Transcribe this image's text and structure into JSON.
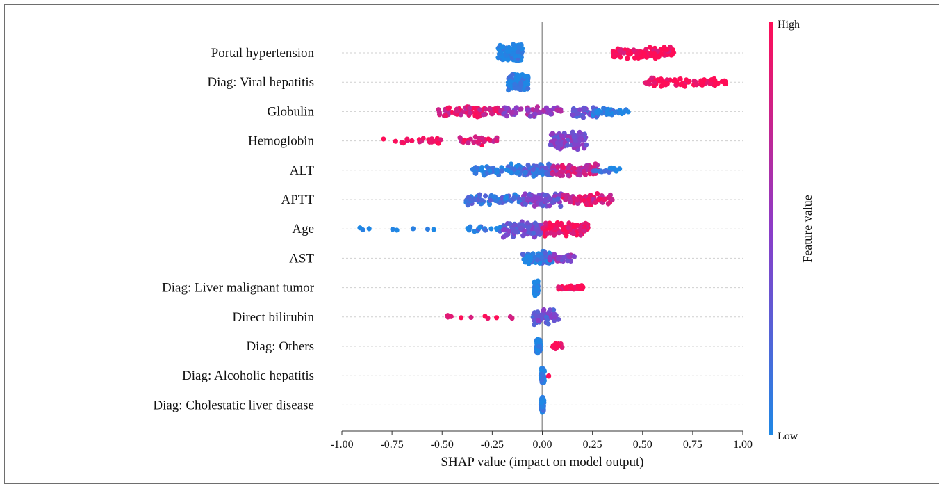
{
  "chart_data": {
    "type": "scatter",
    "subtype": "shap-beeswarm",
    "xlabel": "SHAP value (impact on model output)",
    "xlim": [
      -1.0,
      1.0
    ],
    "xticks": [
      "-1.00",
      "-0.75",
      "-0.50",
      "-0.25",
      "0.00",
      "0.25",
      "0.50",
      "0.75",
      "1.00"
    ],
    "xtick_values": [
      -1.0,
      -0.75,
      -0.5,
      -0.25,
      0.0,
      0.25,
      0.5,
      0.75,
      1.0
    ],
    "grid": "horizontal dashed per feature",
    "colorbar": {
      "title": "Feature value",
      "high_label": "High",
      "low_label": "Low",
      "low_color": "#1e88e5",
      "high_color": "#ff0d57"
    },
    "features": [
      {
        "name": "Portal hypertension",
        "clusters": [
          {
            "min": -0.22,
            "max": -0.1,
            "value": 0.0,
            "n": 130,
            "spread": 14
          },
          {
            "min": 0.35,
            "max": 0.66,
            "value": 1.0,
            "n": 110,
            "spread": 9
          }
        ]
      },
      {
        "name": "Diag: Viral hepatitis",
        "clusters": [
          {
            "min": -0.17,
            "max": -0.07,
            "value": 0.0,
            "n": 110,
            "spread": 14
          },
          {
            "min": 0.5,
            "max": 0.92,
            "value": 1.0,
            "n": 80,
            "spread": 7
          }
        ]
      },
      {
        "name": "Globulin",
        "clusters": [
          {
            "min": -0.52,
            "max": -0.2,
            "value": 0.85,
            "n": 75,
            "spread": 9
          },
          {
            "min": -0.2,
            "max": 0.1,
            "value": 0.55,
            "n": 55,
            "spread": 8
          },
          {
            "min": 0.15,
            "max": 0.28,
            "value": 0.3,
            "n": 45,
            "spread": 10
          },
          {
            "min": 0.25,
            "max": 0.43,
            "value": 0.05,
            "n": 40,
            "spread": 6
          }
        ]
      },
      {
        "name": "Hemoglobin",
        "clusters": [
          {
            "min": -0.8,
            "max": -0.5,
            "value": 0.95,
            "n": 22,
            "spread": 4
          },
          {
            "min": -0.43,
            "max": -0.22,
            "value": 0.85,
            "n": 28,
            "spread": 6
          },
          {
            "min": 0.04,
            "max": 0.22,
            "value": 0.45,
            "n": 90,
            "spread": 13
          }
        ]
      },
      {
        "name": "ALT",
        "clusters": [
          {
            "min": -0.35,
            "max": -0.1,
            "value": 0.05,
            "n": 60,
            "spread": 9
          },
          {
            "min": -0.1,
            "max": 0.05,
            "value": 0.2,
            "n": 60,
            "spread": 10
          },
          {
            "min": 0.05,
            "max": 0.28,
            "value": 0.75,
            "n": 80,
            "spread": 10
          },
          {
            "min": 0.25,
            "max": 0.4,
            "value": 0.05,
            "n": 20,
            "spread": 4
          }
        ]
      },
      {
        "name": "APTT",
        "clusters": [
          {
            "min": -0.38,
            "max": -0.05,
            "value": 0.15,
            "n": 80,
            "spread": 8
          },
          {
            "min": -0.1,
            "max": 0.1,
            "value": 0.4,
            "n": 70,
            "spread": 12
          },
          {
            "min": 0.1,
            "max": 0.35,
            "value": 0.85,
            "n": 65,
            "spread": 9
          }
        ]
      },
      {
        "name": "Age",
        "clusters": [
          {
            "min": -0.93,
            "max": -0.54,
            "value": 0.0,
            "n": 8,
            "spread": 2
          },
          {
            "min": -0.38,
            "max": -0.2,
            "value": 0.05,
            "n": 18,
            "spread": 5
          },
          {
            "min": -0.2,
            "max": 0.0,
            "value": 0.35,
            "n": 80,
            "spread": 13
          },
          {
            "min": 0.0,
            "max": 0.23,
            "value": 0.95,
            "n": 90,
            "spread": 12
          }
        ]
      },
      {
        "name": "AST",
        "clusters": [
          {
            "min": -0.1,
            "max": 0.05,
            "value": 0.1,
            "n": 95,
            "spread": 12
          },
          {
            "min": 0.03,
            "max": 0.16,
            "value": 0.5,
            "n": 40,
            "spread": 6
          }
        ]
      },
      {
        "name": "Diag: Liver malignant tumor",
        "clusters": [
          {
            "min": -0.04,
            "max": -0.02,
            "value": 0.0,
            "n": 60,
            "spread": 14
          },
          {
            "min": 0.08,
            "max": 0.21,
            "value": 1.0,
            "n": 35,
            "spread": 4
          }
        ]
      },
      {
        "name": "Direct bilirubin",
        "clusters": [
          {
            "min": -0.53,
            "max": -0.13,
            "value": 0.95,
            "n": 10,
            "spread": 3
          },
          {
            "min": -0.05,
            "max": 0.08,
            "value": 0.35,
            "n": 50,
            "spread": 12
          }
        ]
      },
      {
        "name": "Diag: Others",
        "clusters": [
          {
            "min": -0.03,
            "max": -0.01,
            "value": 0.0,
            "n": 45,
            "spread": 13
          },
          {
            "min": 0.05,
            "max": 0.1,
            "value": 1.0,
            "n": 18,
            "spread": 5
          }
        ]
      },
      {
        "name": "Diag: Alcoholic hepatitis",
        "clusters": [
          {
            "min": -0.005,
            "max": 0.01,
            "value": 0.0,
            "n": 45,
            "spread": 14
          },
          {
            "min": 0.025,
            "max": 0.035,
            "value": 1.0,
            "n": 2,
            "spread": 2
          }
        ]
      },
      {
        "name": "Diag: Cholestatic liver disease",
        "clusters": [
          {
            "min": -0.005,
            "max": 0.008,
            "value": 0.0,
            "n": 45,
            "spread": 14
          }
        ]
      }
    ]
  }
}
